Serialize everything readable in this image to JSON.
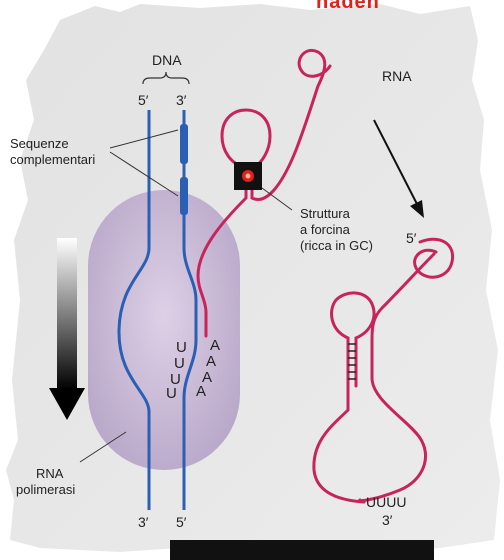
{
  "header_fragment": "naden",
  "dna": {
    "title": "DNA",
    "strand_left_top": "5′",
    "strand_right_top": "3′",
    "strand_left_bottom": "3′",
    "strand_right_bottom": "5′"
  },
  "labels": {
    "complementary_line1": "Sequenze",
    "complementary_line2": "complementari",
    "hairpin_line1": "Struttura",
    "hairpin_line2": "a forcina",
    "hairpin_line3": "(ricca in GC)",
    "polymerase_line1": "RNA",
    "polymerase_line2": "polimerasi",
    "rna_top": "RNA",
    "released_5prime": "5′",
    "released_tail": "UUUU",
    "released_3prime": "3′"
  },
  "template_bases": {
    "u_column": [
      "U",
      "U",
      "U",
      "U"
    ],
    "a_column": [
      "A",
      "A",
      "A",
      "A"
    ]
  },
  "colors": {
    "dna_blue": "#2a5fb3",
    "rna_red": "#c8245c",
    "polymerase": "#cbbbd7",
    "background_panel": "#e6e6e6"
  }
}
